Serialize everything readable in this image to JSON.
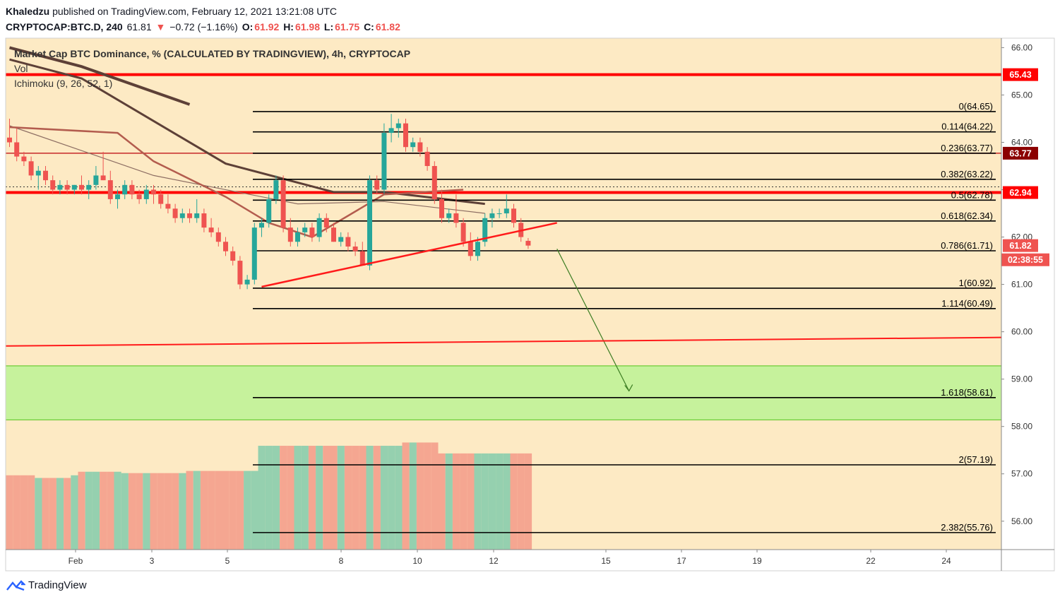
{
  "header": {
    "author": "Khaledzu",
    "published_text": "published on TradingView.com, February 12, 2021 13:21:08 UTC",
    "symbol": "CRYPTOCAP:BTC.D, 240",
    "last": "61.81",
    "arrow": "▼",
    "change": "−0.72 (−1.16%)",
    "o_label": "O:",
    "o_val": "61.92",
    "h_label": "H:",
    "h_val": "61.98",
    "l_label": "L:",
    "l_val": "61.75",
    "c_label": "C:",
    "c_val": "61.82"
  },
  "legend": {
    "title": "Market Cap BTC Dominance, % (CALCULATED BY TRADINGVIEW), 4h, CRYPTOCAP",
    "vol": "Vol",
    "ichimoku": "Ichimoku (9, 26, 52, 1)"
  },
  "footer": {
    "brand": "TradingView"
  },
  "colors": {
    "background": "#fdeac4",
    "up": "#26a69a",
    "down": "#ef5350",
    "support_zone": "#c6f29c",
    "resistance": "#ff0000",
    "fib_line": "#000000",
    "ma": "#5d4037"
  },
  "chart_data": {
    "type": "candlestick",
    "y_scale": {
      "min": 55.4,
      "max": 66.2
    },
    "x_ticks": [
      "Feb",
      "3",
      "5",
      "8",
      "10",
      "12",
      "15",
      "17",
      "19",
      "22",
      "24"
    ],
    "y_ticks": [
      "66.00",
      "65.00",
      "64.00",
      "63.00",
      "62.00",
      "61.00",
      "60.00",
      "59.00",
      "58.00",
      "57.00",
      "56.00"
    ],
    "price_tags": [
      {
        "label": "65.43",
        "value": 65.43,
        "color": "#ff0000"
      },
      {
        "label": "63.77",
        "value": 63.77,
        "color": "#8b0000"
      },
      {
        "label": "62.94",
        "value": 62.94,
        "color": "#ff0000"
      },
      {
        "label": "61.82",
        "value": 61.82,
        "color": "#ef5350"
      },
      {
        "label": "02:38:55",
        "value": 61.52,
        "color": "#ef5350"
      }
    ],
    "fib_levels": [
      {
        "label": "0(64.65)",
        "value": 64.65
      },
      {
        "label": "0.114(64.22)",
        "value": 64.22
      },
      {
        "label": "0.236(63.77)",
        "value": 63.77
      },
      {
        "label": "0.382(63.22)",
        "value": 63.22
      },
      {
        "label": "0.5(62.78)",
        "value": 62.78
      },
      {
        "label": "0.618(62.34)",
        "value": 62.34
      },
      {
        "label": "0.786(61.71)",
        "value": 61.71
      },
      {
        "label": "1(60.92)",
        "value": 60.92
      },
      {
        "label": "1.114(60.49)",
        "value": 60.49
      },
      {
        "label": "1.618(58.61)",
        "value": 58.61
      },
      {
        "label": "2(57.19)",
        "value": 57.19
      },
      {
        "label": "2.382(55.76)",
        "value": 55.76
      }
    ],
    "horizontal_lines": [
      {
        "value": 65.43,
        "color": "#ff0000"
      },
      {
        "value": 63.77,
        "color": "#c62828"
      },
      {
        "value": 62.94,
        "color": "#ff0000"
      }
    ],
    "support_zone": {
      "top": 59.28,
      "bottom": 58.14
    },
    "trendline": {
      "start": [
        0.0,
        60.95
      ],
      "end": [
        39.0,
        62.3
      ]
    },
    "projection": {
      "start": [
        39.0,
        61.75
      ],
      "end": [
        43.0,
        58.75
      ]
    },
    "rising_line": {
      "start": [
        0.0,
        59.7
      ],
      "end": [
        70.0,
        59.88
      ]
    },
    "candles": [
      [
        64.1,
        64.5,
        63.9,
        64.0
      ],
      [
        64.0,
        64.3,
        63.6,
        63.7
      ],
      [
        63.7,
        63.8,
        63.5,
        63.6
      ],
      [
        63.6,
        63.7,
        63.2,
        63.3
      ],
      [
        63.3,
        63.5,
        63.0,
        63.4
      ],
      [
        63.4,
        63.5,
        63.1,
        63.2
      ],
      [
        63.2,
        63.3,
        62.9,
        63.0
      ],
      [
        63.0,
        63.2,
        62.9,
        63.1
      ],
      [
        63.1,
        63.2,
        62.9,
        63.0
      ],
      [
        63.0,
        63.1,
        62.9,
        63.1
      ],
      [
        63.1,
        63.3,
        62.9,
        63.0
      ],
      [
        63.0,
        63.2,
        62.8,
        63.1
      ],
      [
        63.1,
        63.5,
        63.0,
        63.3
      ],
      [
        63.3,
        63.8,
        63.2,
        63.2
      ],
      [
        63.2,
        63.4,
        62.7,
        62.8
      ],
      [
        62.8,
        63.0,
        62.6,
        62.9
      ],
      [
        62.9,
        63.2,
        62.8,
        63.1
      ],
      [
        63.1,
        63.2,
        62.8,
        62.9
      ],
      [
        62.9,
        63.0,
        62.7,
        62.8
      ],
      [
        62.8,
        63.1,
        62.7,
        63.0
      ],
      [
        63.0,
        63.1,
        62.7,
        62.9
      ],
      [
        62.9,
        63.0,
        62.6,
        62.7
      ],
      [
        62.7,
        62.9,
        62.5,
        62.6
      ],
      [
        62.6,
        62.7,
        62.3,
        62.4
      ],
      [
        62.4,
        62.6,
        62.3,
        62.5
      ],
      [
        62.5,
        62.6,
        62.3,
        62.4
      ],
      [
        62.4,
        62.8,
        62.3,
        62.5
      ],
      [
        62.5,
        62.6,
        62.1,
        62.2
      ],
      [
        62.2,
        62.4,
        62.0,
        62.1
      ],
      [
        62.1,
        62.2,
        61.8,
        61.9
      ],
      [
        61.9,
        62.0,
        61.6,
        61.7
      ],
      [
        61.7,
        61.8,
        61.4,
        61.5
      ],
      [
        61.5,
        61.6,
        60.9,
        61.0
      ],
      [
        61.0,
        61.2,
        60.9,
        61.1
      ],
      [
        61.1,
        62.3,
        61.0,
        62.2
      ],
      [
        62.2,
        62.4,
        62.0,
        62.3
      ],
      [
        62.3,
        62.9,
        62.2,
        62.8
      ],
      [
        62.8,
        63.3,
        62.7,
        63.2
      ],
      [
        63.2,
        63.3,
        62.1,
        62.2
      ],
      [
        62.2,
        62.4,
        61.8,
        61.9
      ],
      [
        61.9,
        62.2,
        61.8,
        62.1
      ],
      [
        62.1,
        62.3,
        62.0,
        62.2
      ],
      [
        62.2,
        62.3,
        61.9,
        62.0
      ],
      [
        62.0,
        62.5,
        61.9,
        62.4
      ],
      [
        62.4,
        62.5,
        62.1,
        62.2
      ],
      [
        62.2,
        62.3,
        61.9,
        61.9
      ],
      [
        61.9,
        62.1,
        61.8,
        62.0
      ],
      [
        62.0,
        62.1,
        61.7,
        61.8
      ],
      [
        61.8,
        61.9,
        61.6,
        61.7
      ],
      [
        61.7,
        61.9,
        61.4,
        61.4
      ],
      [
        61.4,
        63.3,
        61.3,
        63.2
      ],
      [
        63.2,
        63.3,
        62.9,
        63.0
      ],
      [
        63.0,
        64.4,
        62.9,
        64.2
      ],
      [
        64.2,
        64.6,
        64.0,
        64.3
      ],
      [
        64.3,
        64.5,
        64.1,
        64.4
      ],
      [
        64.4,
        64.5,
        63.8,
        63.9
      ],
      [
        63.9,
        64.1,
        63.8,
        64.0
      ],
      [
        64.0,
        64.1,
        63.7,
        63.8
      ],
      [
        63.8,
        63.9,
        63.4,
        63.5
      ],
      [
        63.5,
        63.6,
        62.7,
        62.8
      ],
      [
        62.8,
        63.0,
        62.3,
        62.4
      ],
      [
        62.4,
        62.6,
        62.3,
        62.5
      ],
      [
        62.5,
        62.9,
        62.2,
        62.3
      ],
      [
        62.3,
        62.4,
        61.8,
        61.9
      ],
      [
        61.9,
        62.1,
        61.5,
        61.6
      ],
      [
        61.6,
        62.0,
        61.5,
        61.9
      ],
      [
        61.9,
        62.5,
        61.8,
        62.4
      ],
      [
        62.4,
        62.6,
        62.2,
        62.5
      ],
      [
        62.5,
        62.6,
        62.4,
        62.5
      ],
      [
        62.5,
        62.9,
        62.4,
        62.6
      ],
      [
        62.6,
        62.7,
        62.2,
        62.3
      ],
      [
        62.3,
        62.4,
        61.9,
        62.0
      ],
      [
        61.92,
        61.98,
        61.75,
        61.82
      ]
    ],
    "volume": [
      0.56,
      0.56,
      0.56,
      0.56,
      0.54,
      0.54,
      0.54,
      0.54,
      0.54,
      0.56,
      0.57,
      0.57,
      0.57,
      0.57,
      0.57,
      0.57,
      0.56,
      0.56,
      0.56,
      0.56,
      0.56,
      0.56,
      0.56,
      0.56,
      0.56,
      0.56,
      0.56,
      0.56,
      0.56,
      0.56,
      0.56,
      0.56,
      0.56,
      0.56,
      0.56,
      0.56,
      0.56,
      0.56,
      0.56,
      0.56,
      0.56,
      0.56,
      0.56,
      0.56,
      0.56,
      0.56,
      0.56,
      0.56,
      0.56,
      0.56,
      0.56,
      0.56,
      0.56,
      0.56,
      0.56,
      0.56,
      0.56,
      0.56,
      0.56,
      0.56,
      0.56,
      0.56,
      0.56,
      0.56,
      0.56,
      0.56,
      0.56,
      0.56,
      0.56,
      0.56,
      0.56,
      0.56,
      0.56
    ],
    "ma_slow": [
      [
        0,
        65.75
      ],
      [
        10,
        65.35
      ],
      [
        30,
        63.55
      ],
      [
        45,
        62.95
      ],
      [
        52,
        62.95
      ],
      [
        66,
        62.7
      ]
    ],
    "ma_fast": [
      [
        0,
        64.35
      ],
      [
        20,
        63.3
      ],
      [
        40,
        62.7
      ],
      [
        52,
        62.75
      ],
      [
        66,
        62.5
      ]
    ],
    "ma_long": [
      [
        0,
        66.0
      ],
      [
        10,
        65.6
      ],
      [
        25,
        64.8
      ]
    ],
    "kumo_line": [
      [
        0,
        64.32
      ],
      [
        15,
        64.2
      ],
      [
        20,
        63.6
      ],
      [
        30,
        62.85
      ],
      [
        36,
        62.3
      ],
      [
        42,
        62.0
      ],
      [
        52,
        62.9
      ],
      [
        63,
        63.0
      ]
    ]
  }
}
